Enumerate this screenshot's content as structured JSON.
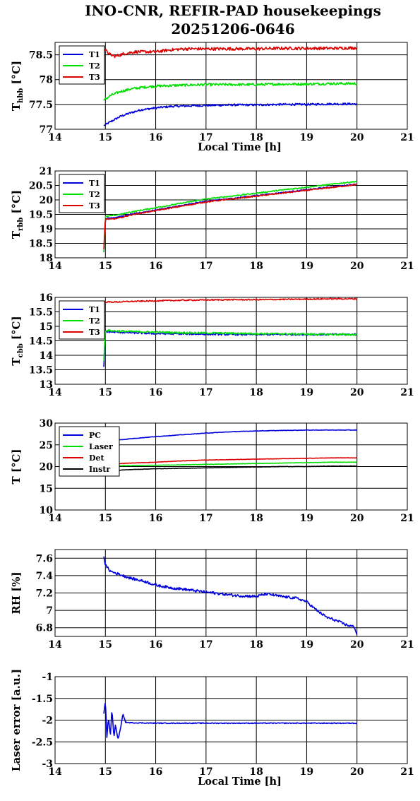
{
  "title": {
    "line1": "INO-CNR, REFIR-PAD housekeepings",
    "line2": "20251206-0646"
  },
  "chart_data": [
    {
      "id": "hbb",
      "type": "line",
      "ylabel": "T",
      "ylabel_sub": "hbb",
      "ylabel_unit": "[°C]",
      "xlabel": "Local Time [h]",
      "xlim": [
        14,
        21
      ],
      "ylim": [
        77,
        78.75
      ],
      "xticks": [
        14,
        15,
        16,
        17,
        18,
        19,
        20,
        21
      ],
      "yticks": [
        77,
        77.5,
        78,
        78.5
      ],
      "ytick_labels": [
        "77",
        "77.5",
        "78",
        "78.5"
      ],
      "grid": true,
      "legend_position": "top-left",
      "series": [
        {
          "name": "T1",
          "color": "#0000dd",
          "x": [
            14.97,
            15.1,
            15.3,
            15.5,
            15.7,
            16.0,
            16.3,
            16.6,
            17.0,
            17.5,
            18.0,
            18.5,
            19.0,
            19.5,
            20.0
          ],
          "y": [
            77.07,
            77.15,
            77.26,
            77.33,
            77.39,
            77.43,
            77.46,
            77.47,
            77.48,
            77.49,
            77.49,
            77.5,
            77.5,
            77.51,
            77.51
          ],
          "noise": 0.02
        },
        {
          "name": "T2",
          "color": "#00e000",
          "x": [
            14.97,
            15.1,
            15.3,
            15.5,
            15.7,
            16.0,
            16.3,
            16.6,
            17.0,
            17.5,
            18.0,
            18.5,
            19.0,
            19.5,
            20.0
          ],
          "y": [
            77.58,
            77.68,
            77.76,
            77.81,
            77.84,
            77.87,
            77.88,
            77.89,
            77.9,
            77.9,
            77.9,
            77.91,
            77.91,
            77.92,
            77.92
          ],
          "noise": 0.025
        },
        {
          "name": "T3",
          "color": "#dd0000",
          "x": [
            14.97,
            15.1,
            15.2,
            15.4,
            15.6,
            16.0,
            16.3,
            16.6,
            17.0,
            17.5,
            18.0,
            18.5,
            19.0,
            19.5,
            20.0
          ],
          "y": [
            78.62,
            78.5,
            78.47,
            78.53,
            78.56,
            78.56,
            78.6,
            78.62,
            78.62,
            78.62,
            78.62,
            78.63,
            78.63,
            78.63,
            78.64
          ],
          "noise": 0.03
        }
      ]
    },
    {
      "id": "rbb",
      "type": "line",
      "ylabel": "T",
      "ylabel_sub": "rbb",
      "ylabel_unit": "[°C]",
      "xlabel": "",
      "xlim": [
        14,
        21
      ],
      "ylim": [
        18,
        21
      ],
      "xticks": [
        14,
        15,
        16,
        17,
        18,
        19,
        20,
        21
      ],
      "yticks": [
        18,
        18.5,
        19,
        19.5,
        20,
        20.5,
        21
      ],
      "ytick_labels": [
        "18",
        "18.5",
        "19",
        "19.5",
        "20",
        "20.5",
        "21"
      ],
      "grid": true,
      "legend_position": "top-left",
      "series": [
        {
          "name": "T1",
          "color": "#0000dd",
          "x": [
            14.97,
            14.99,
            15.0,
            15.1,
            15.3,
            15.5,
            16.0,
            16.5,
            17.0,
            17.5,
            18.0,
            18.5,
            19.0,
            19.5,
            20.0
          ],
          "y": [
            18.2,
            18.9,
            19.35,
            19.38,
            19.42,
            19.5,
            19.65,
            19.8,
            19.95,
            20.05,
            20.15,
            20.25,
            20.35,
            20.45,
            20.55
          ],
          "noise": 0.02
        },
        {
          "name": "T2",
          "color": "#00e000",
          "x": [
            14.97,
            14.99,
            15.0,
            15.1,
            15.3,
            15.5,
            16.0,
            16.5,
            17.0,
            17.5,
            18.0,
            18.5,
            19.0,
            19.5,
            20.0
          ],
          "y": [
            18.2,
            19.0,
            19.42,
            19.45,
            19.5,
            19.58,
            19.73,
            19.88,
            20.03,
            20.13,
            20.23,
            20.34,
            20.44,
            20.54,
            20.64
          ],
          "noise": 0.02
        },
        {
          "name": "T3",
          "color": "#dd0000",
          "x": [
            14.97,
            14.99,
            15.0,
            15.1,
            15.3,
            15.5,
            16.0,
            16.5,
            17.0,
            17.5,
            18.0,
            18.5,
            19.0,
            19.5,
            20.0
          ],
          "y": [
            18.3,
            19.1,
            19.35,
            19.33,
            19.38,
            19.48,
            19.63,
            19.78,
            19.93,
            20.03,
            20.13,
            20.23,
            20.33,
            20.43,
            20.53
          ],
          "noise": 0.02
        }
      ]
    },
    {
      "id": "cbb",
      "type": "line",
      "ylabel": "T",
      "ylabel_sub": "cbb",
      "ylabel_unit": "[°C]",
      "xlabel": "",
      "xlim": [
        14,
        21
      ],
      "ylim": [
        13,
        16
      ],
      "xticks": [
        14,
        15,
        16,
        17,
        18,
        19,
        20,
        21
      ],
      "yticks": [
        13,
        13.5,
        14,
        14.5,
        15,
        15.5,
        16
      ],
      "ytick_labels": [
        "13",
        "13.5",
        "14",
        "14.5",
        "15",
        "15.5",
        "16"
      ],
      "grid": true,
      "legend_position": "top-left",
      "series": [
        {
          "name": "T1",
          "color": "#0000dd",
          "x": [
            14.97,
            14.99,
            15.0,
            15.2,
            15.5,
            16.0,
            16.5,
            17.0,
            17.5,
            18.0,
            18.5,
            19.0,
            19.5,
            20.0
          ],
          "y": [
            13.6,
            14.5,
            14.82,
            14.8,
            14.78,
            14.75,
            14.74,
            14.73,
            14.72,
            14.72,
            14.72,
            14.72,
            14.72,
            14.72
          ],
          "noise": 0.03
        },
        {
          "name": "T2",
          "color": "#00e000",
          "x": [
            14.97,
            14.99,
            15.0,
            15.2,
            15.5,
            16.0,
            16.5,
            17.0,
            17.5,
            18.0,
            18.5,
            19.0,
            19.5,
            20.0
          ],
          "y": [
            13.8,
            14.6,
            14.86,
            14.84,
            14.82,
            14.8,
            14.78,
            14.77,
            14.76,
            14.75,
            14.74,
            14.73,
            14.72,
            14.71
          ],
          "noise": 0.03
        },
        {
          "name": "T3",
          "color": "#dd0000",
          "x": [
            14.97,
            15.0,
            15.2,
            15.5,
            16.0,
            16.5,
            17.0,
            17.5,
            18.0,
            18.5,
            19.0,
            19.5,
            20.0
          ],
          "y": [
            15.82,
            15.84,
            15.84,
            15.86,
            15.88,
            15.9,
            15.91,
            15.92,
            15.92,
            15.93,
            15.94,
            15.95,
            15.95
          ],
          "noise": 0.02
        }
      ]
    },
    {
      "id": "temps",
      "type": "line",
      "ylabel": "T",
      "ylabel_sub": "",
      "ylabel_unit": "[°C]",
      "xlabel": "",
      "xlim": [
        14,
        21
      ],
      "ylim": [
        10,
        30
      ],
      "xticks": [
        14,
        15,
        16,
        17,
        18,
        19,
        20,
        21
      ],
      "yticks": [
        10,
        15,
        20,
        25,
        30
      ],
      "ytick_labels": [
        "10",
        "15",
        "20",
        "25",
        "30"
      ],
      "grid": true,
      "legend_position": "top-left",
      "series": [
        {
          "name": "PC",
          "color": "#0000dd",
          "x": [
            14.97,
            15.0,
            15.5,
            16.0,
            16.5,
            17.0,
            17.5,
            18.0,
            18.5,
            19.0,
            19.5,
            20.0
          ],
          "y": [
            25.5,
            25.8,
            26.4,
            26.9,
            27.3,
            27.7,
            28.0,
            28.2,
            28.3,
            28.4,
            28.4,
            28.4
          ],
          "noise": 0.05
        },
        {
          "name": "Laser",
          "color": "#00e000",
          "x": [
            14.97,
            15.5,
            16.0,
            16.5,
            17.0,
            17.5,
            18.0,
            18.5,
            19.0,
            19.5,
            20.0
          ],
          "y": [
            20.2,
            20.2,
            20.3,
            20.4,
            20.5,
            20.6,
            20.7,
            20.8,
            20.9,
            21.0,
            21.0
          ],
          "noise": 0.04
        },
        {
          "name": "Det",
          "color": "#dd0000",
          "x": [
            14.97,
            15.5,
            16.0,
            16.5,
            17.0,
            17.5,
            18.0,
            18.5,
            19.0,
            19.5,
            20.0
          ],
          "y": [
            20.5,
            20.8,
            21.0,
            21.3,
            21.5,
            21.6,
            21.7,
            21.8,
            21.9,
            22.0,
            22.0
          ],
          "noise": 0.04
        },
        {
          "name": "Instr",
          "color": "#000000",
          "x": [
            14.97,
            15.5,
            16.0,
            16.5,
            17.0,
            17.5,
            18.0,
            18.5,
            19.0,
            19.5,
            20.0
          ],
          "y": [
            19.0,
            19.3,
            19.5,
            19.6,
            19.7,
            19.8,
            19.9,
            20.0,
            20.0,
            20.1,
            20.1
          ],
          "noise": 0.04
        }
      ]
    },
    {
      "id": "rh",
      "type": "line",
      "ylabel": "RH",
      "ylabel_sub": "",
      "ylabel_unit": "[%]",
      "xlabel": "",
      "xlim": [
        14,
        21
      ],
      "ylim": [
        6.7,
        7.7
      ],
      "xticks": [
        14,
        15,
        16,
        17,
        18,
        19,
        20,
        21
      ],
      "yticks": [
        6.8,
        7,
        7.2,
        7.4,
        7.6
      ],
      "ytick_labels": [
        "6.8",
        "7",
        "7.2",
        "7.4",
        "7.6"
      ],
      "grid": true,
      "legend_position": "",
      "series": [
        {
          "name": "",
          "color": "#0000dd",
          "x": [
            14.97,
            15.0,
            15.1,
            15.3,
            15.5,
            15.8,
            16.0,
            16.3,
            16.6,
            17.0,
            17.3,
            17.6,
            18.0,
            18.2,
            18.5,
            18.8,
            19.0,
            19.2,
            19.4,
            19.6,
            19.8,
            19.95,
            20.0
          ],
          "y": [
            7.62,
            7.52,
            7.45,
            7.41,
            7.37,
            7.33,
            7.29,
            7.26,
            7.24,
            7.21,
            7.19,
            7.17,
            7.16,
            7.19,
            7.16,
            7.14,
            7.1,
            7.0,
            6.92,
            6.88,
            6.83,
            6.81,
            6.72
          ],
          "noise": 0.015
        }
      ]
    },
    {
      "id": "laser",
      "type": "line",
      "ylabel": "Laser error [a.u.]",
      "ylabel_sub": "",
      "ylabel_unit": "",
      "xlabel": "Local Time [h]",
      "xlim": [
        14,
        21
      ],
      "ylim": [
        -3,
        -1
      ],
      "xticks": [
        14,
        15,
        16,
        17,
        18,
        19,
        20,
        21
      ],
      "yticks": [
        -3,
        -2.5,
        -2,
        -1.5,
        -1
      ],
      "ytick_labels": [
        "-3",
        "-2.5",
        "-2",
        "-1.5",
        "-1"
      ],
      "grid": true,
      "legend_position": "",
      "series": [
        {
          "name": "",
          "color": "#0000dd",
          "x": [
            14.97,
            15.0,
            15.03,
            15.06,
            15.1,
            15.13,
            15.17,
            15.2,
            15.25,
            15.3,
            15.35,
            15.4,
            15.5,
            16.0,
            17.0,
            18.0,
            19.0,
            20.0
          ],
          "y": [
            -1.85,
            -1.55,
            -2.4,
            -1.95,
            -2.35,
            -1.75,
            -2.4,
            -2.1,
            -2.45,
            -2.2,
            -1.85,
            -2.05,
            -2.06,
            -2.07,
            -2.07,
            -2.07,
            -2.07,
            -2.07
          ],
          "noise": 0.01
        }
      ]
    }
  ]
}
